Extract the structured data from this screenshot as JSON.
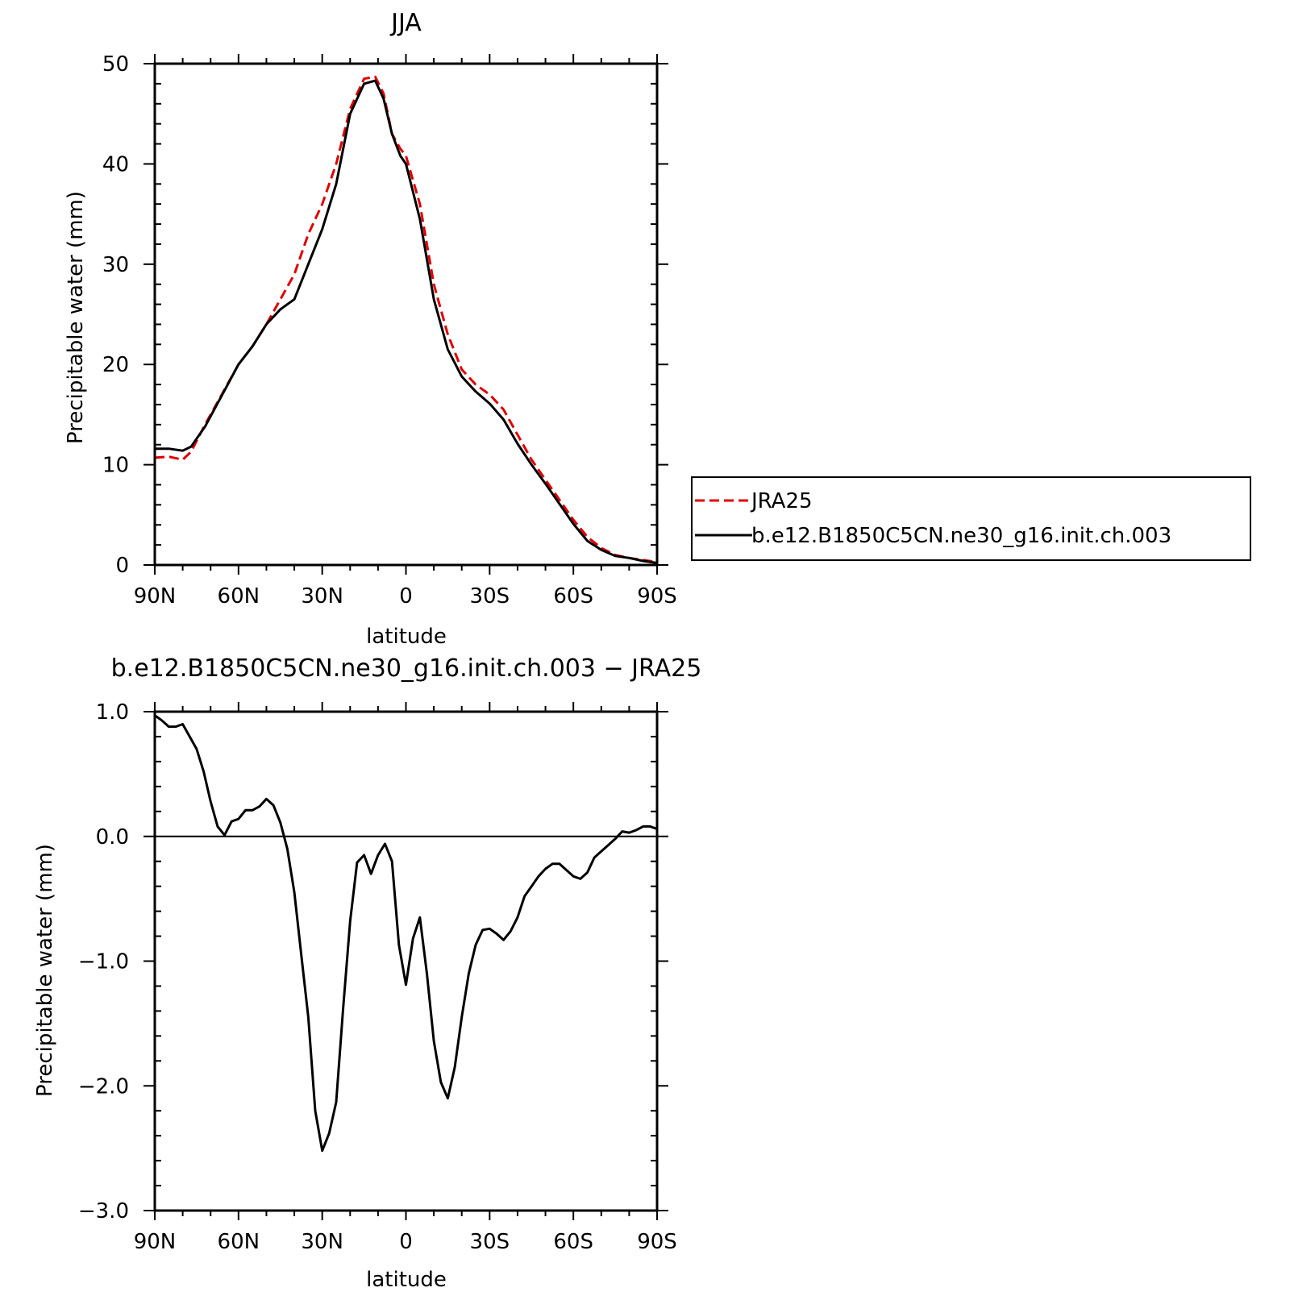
{
  "colors": {
    "jra25": "#e00000",
    "model": "#000000",
    "frame": "#000000"
  },
  "chart_data": [
    {
      "type": "line",
      "title": "JJA",
      "xlabel": "latitude",
      "ylabel": "Precipitable water (mm)",
      "xlim": [
        90,
        -90
      ],
      "ylim": [
        0,
        50
      ],
      "x_ticks": [
        90,
        60,
        30,
        0,
        -30,
        -60,
        -90
      ],
      "x_tick_labels": [
        "90N",
        "60N",
        "30N",
        "0",
        "30S",
        "60S",
        "90S"
      ],
      "y_ticks": [
        0,
        10,
        20,
        30,
        40,
        50
      ],
      "y_tick_labels": [
        "0",
        "10",
        "20",
        "30",
        "40",
        "50"
      ],
      "grid": false,
      "legend": "right",
      "series": [
        {
          "name": "JRA25",
          "style": "dashed",
          "color": "#e00000",
          "x": [
            90,
            85,
            80,
            77,
            72,
            66,
            60,
            55,
            50,
            45,
            40,
            35,
            30,
            25,
            20,
            15,
            11,
            8,
            5,
            2,
            0,
            -5,
            -10,
            -15,
            -20,
            -25,
            -30,
            -35,
            -40,
            -45,
            -50,
            -55,
            -60,
            -65,
            -70,
            -75,
            -80,
            -85,
            -90
          ],
          "y": [
            10.7,
            10.8,
            10.5,
            11.3,
            14.0,
            17.0,
            20.0,
            21.8,
            24.0,
            26.5,
            29.0,
            33.0,
            36.0,
            40.0,
            45.5,
            48.5,
            48.7,
            47.0,
            43.0,
            41.5,
            40.8,
            36.0,
            28.0,
            23.0,
            19.5,
            18.0,
            17.0,
            15.5,
            13.0,
            10.5,
            8.5,
            6.5,
            4.5,
            2.8,
            1.7,
            1.0,
            0.7,
            0.5,
            0.3
          ]
        },
        {
          "name": "b.e12.B1850C5CN.ne30_g16.init.ch.003",
          "style": "solid",
          "color": "#000000",
          "x": [
            90,
            85,
            80,
            77,
            72,
            66,
            60,
            55,
            50,
            45,
            40,
            35,
            30,
            25,
            20,
            15,
            11,
            8,
            5,
            2,
            0,
            -5,
            -10,
            -15,
            -20,
            -25,
            -30,
            -35,
            -40,
            -45,
            -50,
            -55,
            -60,
            -65,
            -70,
            -75,
            -80,
            -85,
            -90
          ],
          "y": [
            11.6,
            11.6,
            11.4,
            11.8,
            13.8,
            16.9,
            20.0,
            21.8,
            24.0,
            25.5,
            26.5,
            30.0,
            33.5,
            38.0,
            45.0,
            48.0,
            48.3,
            46.5,
            43.0,
            40.8,
            40.0,
            34.5,
            26.5,
            21.5,
            18.8,
            17.3,
            16.1,
            14.5,
            12.1,
            10.0,
            8.1,
            6.1,
            4.1,
            2.4,
            1.5,
            0.9,
            0.7,
            0.4,
            0.2
          ]
        }
      ]
    },
    {
      "type": "line",
      "title": "b.e12.B1850C5CN.ne30_g16.init.ch.003 − JRA25",
      "xlabel": "latitude",
      "ylabel": "Precipitable water (mm)",
      "xlim": [
        90,
        -90
      ],
      "ylim": [
        -3.0,
        1.0
      ],
      "x_ticks": [
        90,
        60,
        30,
        0,
        -30,
        -60,
        -90
      ],
      "x_tick_labels": [
        "90N",
        "60N",
        "30N",
        "0",
        "30S",
        "60S",
        "90S"
      ],
      "y_ticks": [
        1.0,
        0.0,
        -1.0,
        -2.0,
        -3.0
      ],
      "y_tick_labels": [
        "1.0",
        "0.0",
        "−1.0",
        "−2.0",
        "−3.0"
      ],
      "grid": false,
      "series": [
        {
          "color": "#000000",
          "x": [
            90,
            87.5,
            85,
            82.5,
            80,
            77.5,
            75,
            72.5,
            70,
            67.5,
            65,
            62.5,
            60,
            57.5,
            55,
            52.5,
            50,
            47.5,
            45,
            42.5,
            40,
            37.5,
            35,
            32.5,
            30,
            27.5,
            25,
            22.5,
            20,
            17.5,
            15,
            12.5,
            10,
            7.5,
            5,
            2.5,
            0,
            -2.5,
            -5,
            -7.5,
            -10,
            -12.5,
            -15,
            -17.5,
            -20,
            -22.5,
            -25,
            -27.5,
            -30,
            -32.5,
            -35,
            -37.5,
            -40,
            -42.5,
            -45,
            -47.5,
            -50,
            -52.5,
            -55,
            -57.5,
            -60,
            -62.5,
            -65,
            -67.5,
            -70,
            -72.5,
            -75,
            -77.5,
            -80,
            -82.5,
            -85,
            -87.5,
            -90
          ],
          "y": [
            0.97,
            0.93,
            0.88,
            0.88,
            0.9,
            0.8,
            0.7,
            0.52,
            0.28,
            0.08,
            0.01,
            0.12,
            0.14,
            0.21,
            0.21,
            0.24,
            0.3,
            0.25,
            0.11,
            -0.1,
            -0.45,
            -0.95,
            -1.45,
            -2.2,
            -2.52,
            -2.38,
            -2.13,
            -1.38,
            -0.68,
            -0.21,
            -0.15,
            -0.3,
            -0.15,
            -0.06,
            -0.2,
            -0.87,
            -1.19,
            -0.82,
            -0.65,
            -1.1,
            -1.64,
            -1.97,
            -2.1,
            -1.85,
            -1.45,
            -1.1,
            -0.87,
            -0.75,
            -0.74,
            -0.78,
            -0.83,
            -0.76,
            -0.65,
            -0.48,
            -0.4,
            -0.32,
            -0.26,
            -0.22,
            -0.22,
            -0.27,
            -0.32,
            -0.34,
            -0.29,
            -0.17,
            -0.12,
            -0.07,
            -0.02,
            0.04,
            0.03,
            0.05,
            0.08,
            0.08,
            0.06
          ]
        }
      ]
    }
  ]
}
